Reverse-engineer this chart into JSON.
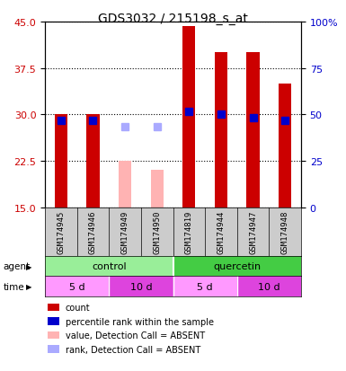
{
  "title": "GDS3032 / 215198_s_at",
  "samples": [
    "GSM174945",
    "GSM174946",
    "GSM174949",
    "GSM174950",
    "GSM174819",
    "GSM174944",
    "GSM174947",
    "GSM174948"
  ],
  "absent": [
    false,
    false,
    true,
    true,
    false,
    false,
    false,
    false
  ],
  "count_values": [
    30.0,
    30.0,
    22.5,
    21.0,
    44.3,
    40.0,
    40.0,
    35.0
  ],
  "rank_values": [
    29.0,
    29.0,
    28.0,
    28.0,
    30.5,
    30.0,
    29.5,
    29.0
  ],
  "ylim_left": [
    15,
    45
  ],
  "ylim_right": [
    0,
    100
  ],
  "yticks_left": [
    15,
    22.5,
    30,
    37.5,
    45
  ],
  "yticks_right": [
    0,
    25,
    50,
    75,
    100
  ],
  "color_red": "#cc0000",
  "color_blue": "#0000cc",
  "color_pink": "#ffb3b3",
  "color_blue_light": "#aaaaff",
  "color_green_light": "#99ee99",
  "color_green_dark": "#44cc44",
  "color_pink_time_light": "#ff99ff",
  "color_pink_time_dark": "#dd44dd",
  "agent_groups": [
    {
      "label": "control",
      "start": 0,
      "end": 4
    },
    {
      "label": "quercetin",
      "start": 4,
      "end": 8
    }
  ],
  "time_groups": [
    {
      "label": "5 d",
      "start": 0,
      "end": 2
    },
    {
      "label": "10 d",
      "start": 2,
      "end": 4
    },
    {
      "label": "5 d",
      "start": 4,
      "end": 6
    },
    {
      "label": "10 d",
      "start": 6,
      "end": 8
    }
  ],
  "legend_items": [
    {
      "color": "#cc0000",
      "label": "count"
    },
    {
      "color": "#0000cc",
      "label": "percentile rank within the sample"
    },
    {
      "color": "#ffb3b3",
      "label": "value, Detection Call = ABSENT"
    },
    {
      "color": "#aaaaff",
      "label": "rank, Detection Call = ABSENT"
    }
  ],
  "bar_width": 0.4,
  "marker_size": 6
}
